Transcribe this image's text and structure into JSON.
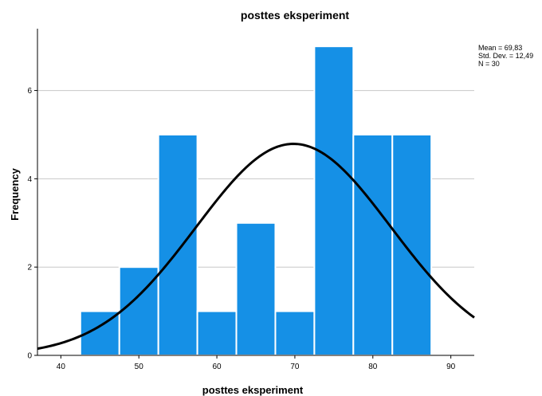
{
  "chart_data": {
    "type": "bar",
    "title": "posttes eksperiment",
    "xlabel": "posttes eksperiment",
    "ylabel": "Frequency",
    "bin_edges": [
      42.5,
      47.5,
      52.5,
      57.5,
      62.5,
      67.5,
      72.5,
      77.5,
      82.5,
      87.5
    ],
    "values": [
      1,
      2,
      5,
      1,
      3,
      1,
      7,
      5,
      5
    ],
    "xlim": [
      37.0,
      93.0
    ],
    "ylim": [
      0,
      7.4
    ],
    "x_ticks": [
      40,
      50,
      60,
      70,
      80,
      90
    ],
    "y_ticks": [
      0,
      2,
      4,
      6
    ],
    "grid": "horizontal",
    "normal_curve": {
      "mean": 69.83,
      "sd": 12.49,
      "n": 30,
      "bin_width": 5
    },
    "stats_labels": [
      "Mean = 69,83",
      "Std. Dev. = 12,49",
      "N = 30"
    ],
    "colors": {
      "bar": "#1590e6",
      "bar_edge": "#ffffff",
      "curve": "#000000",
      "grid": "#c8c8c8"
    }
  }
}
